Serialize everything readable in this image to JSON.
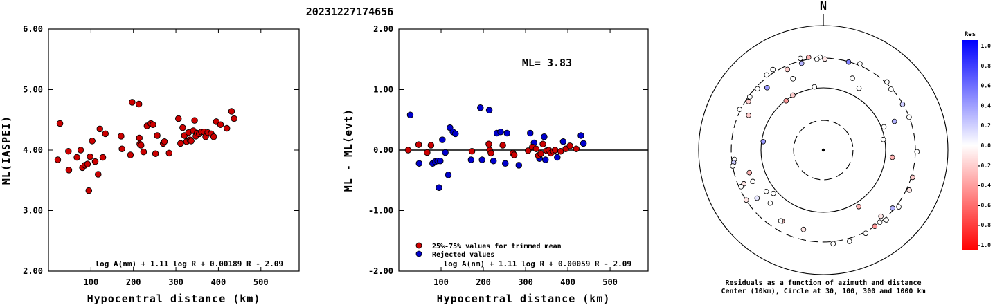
{
  "event_id": "20231227174656",
  "colors": {
    "trimmed": "#cc0000",
    "rejected": "#0000cc"
  },
  "chart_data": [
    {
      "type": "scatter",
      "xlabel": "Hypocentral distance (km)",
      "ylabel": "ML(IASPEI)",
      "xlim": [
        0,
        590
      ],
      "ylim": [
        2.0,
        6.0
      ],
      "xticks": [
        "100",
        "200",
        "300",
        "400",
        "500"
      ],
      "yticks": [
        "2.00",
        "3.00",
        "4.00",
        "5.00",
        "6.00"
      ],
      "formula": "log A(nm) + 1.11 log R + 0.00189 R - 2.09",
      "points": [
        [
          22,
          3.84
        ],
        [
          27,
          4.44
        ],
        [
          47,
          3.98
        ],
        [
          48,
          3.67
        ],
        [
          67,
          3.88
        ],
        [
          76,
          4.0
        ],
        [
          80,
          3.71
        ],
        [
          86,
          3.75
        ],
        [
          92,
          3.77
        ],
        [
          95,
          3.33
        ],
        [
          98,
          3.89
        ],
        [
          103,
          4.15
        ],
        [
          110,
          3.81
        ],
        [
          117,
          3.6
        ],
        [
          121,
          4.35
        ],
        [
          128,
          3.88
        ],
        [
          134,
          4.27
        ],
        [
          171,
          4.23
        ],
        [
          173,
          4.02
        ],
        [
          193,
          3.92
        ],
        [
          197,
          4.79
        ],
        [
          213,
          4.76
        ],
        [
          214,
          4.2
        ],
        [
          215,
          4.1
        ],
        [
          218,
          4.08
        ],
        [
          224,
          3.97
        ],
        [
          232,
          4.4
        ],
        [
          241,
          4.44
        ],
        [
          246,
          4.42
        ],
        [
          252,
          3.94
        ],
        [
          256,
          4.24
        ],
        [
          270,
          4.11
        ],
        [
          273,
          4.14
        ],
        [
          284,
          3.95
        ],
        [
          306,
          4.52
        ],
        [
          311,
          4.11
        ],
        [
          316,
          4.37
        ],
        [
          320,
          4.24
        ],
        [
          325,
          4.14
        ],
        [
          330,
          4.29
        ],
        [
          333,
          4.17
        ],
        [
          336,
          4.15
        ],
        [
          341,
          4.32
        ],
        [
          344,
          4.49
        ],
        [
          347,
          4.23
        ],
        [
          350,
          4.28
        ],
        [
          355,
          4.27
        ],
        [
          360,
          4.3
        ],
        [
          366,
          4.3
        ],
        [
          370,
          4.22
        ],
        [
          375,
          4.29
        ],
        [
          383,
          4.27
        ],
        [
          389,
          4.22
        ],
        [
          395,
          4.47
        ],
        [
          405,
          4.42
        ],
        [
          420,
          4.36
        ],
        [
          431,
          4.64
        ],
        [
          437,
          4.52
        ]
      ]
    },
    {
      "type": "scatter",
      "xlabel": "Hypocentral distance (km)",
      "ylabel": "ML - ML(evt)",
      "xlim": [
        0,
        590
      ],
      "ylim": [
        -2.0,
        2.0
      ],
      "xticks": [
        "100",
        "200",
        "300",
        "400",
        "500"
      ],
      "yticks": [
        "-2.00",
        "-1.00",
        "0.00",
        "1.00",
        "2.00"
      ],
      "ml_text": "ML= 3.83",
      "legend": [
        "25%-75% values for trimmed mean",
        "Rejected values"
      ],
      "formula": "log A(nm) + 1.11 log R + 0.00059 R - 2.09",
      "trimmed": [
        [
          22,
          0.0
        ],
        [
          47,
          0.09
        ],
        [
          67,
          -0.04
        ],
        [
          76,
          0.08
        ],
        [
          173,
          -0.02
        ],
        [
          213,
          0.1
        ],
        [
          215,
          0.0
        ],
        [
          218,
          -0.05
        ],
        [
          246,
          0.08
        ],
        [
          270,
          -0.05
        ],
        [
          273,
          -0.08
        ],
        [
          306,
          -0.01
        ],
        [
          316,
          0.05
        ],
        [
          325,
          0.02
        ],
        [
          330,
          -0.09
        ],
        [
          336,
          -0.06
        ],
        [
          341,
          0.1
        ],
        [
          350,
          -0.01
        ],
        [
          355,
          0.0
        ],
        [
          360,
          -0.05
        ],
        [
          366,
          -0.02
        ],
        [
          370,
          0.0
        ],
        [
          383,
          -0.02
        ],
        [
          395,
          0.02
        ],
        [
          405,
          0.07
        ],
        [
          420,
          0.02
        ]
      ],
      "rejected": [
        [
          27,
          0.58
        ],
        [
          48,
          -0.22
        ],
        [
          80,
          -0.22
        ],
        [
          86,
          -0.19
        ],
        [
          92,
          -0.18
        ],
        [
          95,
          -0.62
        ],
        [
          98,
          -0.18
        ],
        [
          103,
          0.17
        ],
        [
          110,
          -0.04
        ],
        [
          117,
          -0.41
        ],
        [
          121,
          0.37
        ],
        [
          128,
          0.3
        ],
        [
          134,
          0.27
        ],
        [
          171,
          -0.16
        ],
        [
          193,
          0.7
        ],
        [
          197,
          -0.16
        ],
        [
          214,
          0.66
        ],
        [
          224,
          -0.18
        ],
        [
          232,
          0.28
        ],
        [
          241,
          0.3
        ],
        [
          252,
          -0.22
        ],
        [
          256,
          0.28
        ],
        [
          284,
          -0.25
        ],
        [
          311,
          0.28
        ],
        [
          320,
          0.12
        ],
        [
          333,
          -0.14
        ],
        [
          344,
          0.22
        ],
        [
          347,
          -0.16
        ],
        [
          375,
          -0.12
        ],
        [
          389,
          0.14
        ],
        [
          431,
          0.24
        ],
        [
          437,
          0.11
        ]
      ]
    },
    {
      "type": "scatter",
      "subtype": "polar",
      "north_label": "N",
      "caption_1": "Residuals as a function of azimuth and distance",
      "caption_2": "Center (10km), Circle at 30, 100, 300 and 1000 km",
      "circles_km": [
        30,
        100,
        300,
        1000
      ],
      "res_label": "Res",
      "res_ticks": [
        "1.0",
        "0.8",
        "0.6",
        "0.4",
        "0.2",
        "0.0",
        "-0.2",
        "-0.4",
        "-0.6",
        "-0.8",
        "-1.0"
      ],
      "stations": [
        [
          -14,
          274,
          0.3
        ],
        [
          139,
          256,
          -0.1
        ],
        [
          -82,
          94,
          0.4
        ],
        [
          -37,
          98,
          -0.4
        ],
        [
          -126,
          135,
          0.0
        ],
        [
          -135,
          160,
          0.0
        ],
        [
          -107,
          174,
          -0.3
        ],
        [
          -114,
          173,
          0.0
        ],
        [
          -126,
          206,
          0.1
        ],
        [
          -150,
          208,
          -0.2
        ],
        [
          -149,
          212,
          0.0
        ],
        [
          -113,
          243,
          -0.1
        ],
        [
          -96,
          272,
          0.0
        ],
        [
          -98,
          283,
          0.2
        ],
        [
          -100,
          299,
          0.0
        ],
        [
          -123,
          298,
          -0.1
        ],
        [
          -114,
          278,
          0.0
        ],
        [
          -57,
          270,
          -0.2
        ],
        [
          -47,
          278,
          0.0
        ],
        [
          -54,
          287,
          0.0
        ],
        [
          -64,
          311,
          0.0
        ],
        [
          -37,
          324,
          0.0
        ],
        [
          -32,
          335,
          0.0
        ],
        [
          -9,
          322,
          -0.3
        ],
        [
          23,
          320,
          0.0
        ],
        [
          -14,
          330,
          0.0
        ],
        [
          -2,
          311,
          0.0
        ],
        [
          -4,
          291,
          0.0
        ],
        [
          1,
          290,
          -0.1
        ],
        [
          16,
          296,
          0.5
        ],
        [
          43,
          314,
          0.0
        ],
        [
          60,
          294,
          0.2
        ],
        [
          69,
          298,
          0.0
        ],
        [
          91,
          319,
          0.0
        ],
        [
          107,
          315,
          -0.2
        ],
        [
          127,
          329,
          0.0
        ],
        [
          138,
          324,
          0.0
        ],
        [
          115,
          332,
          -0.1
        ],
        [
          164,
          335,
          0.0
        ],
        [
          174,
          325,
          0.0
        ],
        [
          146,
          300,
          -0.4
        ],
        [
          142,
          296,
          0.0
        ],
        [
          153,
          316,
          0.0
        ],
        [
          30,
          140,
          0.0
        ],
        [
          22,
          176,
          0.0
        ],
        [
          -166,
          206,
          -0.1
        ]
      ],
      "near_stations": [
        [
          -29,
          102,
          -0.2
        ],
        [
          -8,
          106,
          0.0
        ],
        [
          69,
          110,
          0.0
        ],
        [
          68,
          170,
          0.3
        ],
        [
          96,
          130,
          -0.3
        ],
        [
          148,
          118,
          -0.3
        ],
        [
          -131,
          115,
          0.0
        ],
        [
          -65,
          210,
          -0.2
        ],
        [
          -42,
          223,
          0.4
        ],
        [
          -24,
          262,
          -0.2
        ],
        [
          48,
          290,
          0.0
        ],
        [
          130,
          283,
          0.3
        ],
        [
          80,
          95,
          0.0
        ],
        [
          -23,
          176,
          0.0
        ]
      ]
    }
  ]
}
